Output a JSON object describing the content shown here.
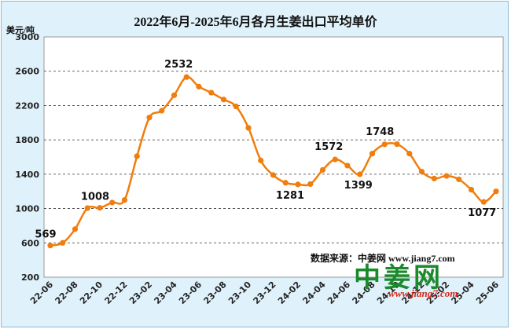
{
  "title": "2022年6月-2025年6月各月生姜出口平均单价",
  "unit_label": "美元/吨",
  "source_text": "数据来源：中姜网 www.jiang7.com",
  "logo": {
    "main": "中姜网",
    "url": "www.jiang7.com"
  },
  "colors": {
    "line": "#f07d0c",
    "plot_bg": "#ffffff",
    "frame_bg": "#dff1fb",
    "grid": "#000000"
  },
  "chart_data": {
    "type": "line",
    "title": "2022年6月-2025年6月各月生姜出口平均单价",
    "xlabel": "",
    "ylabel": "美元/吨",
    "ylim": [
      200,
      3000
    ],
    "yticks": [
      200,
      600,
      1000,
      1400,
      1800,
      2200,
      2600,
      3000
    ],
    "grid": "horizontal dashed",
    "x_tick_labels": [
      "22-06",
      "22-08",
      "22-10",
      "22-12",
      "23-02",
      "23-04",
      "23-06",
      "23-08",
      "23-10",
      "23-12",
      "24-02",
      "24-04",
      "24-06",
      "24-08",
      "24-10",
      "24-12",
      "25-02",
      "25-04",
      "25-06"
    ],
    "x": [
      "22-06",
      "22-07",
      "22-08",
      "22-09",
      "22-10",
      "22-11",
      "22-12",
      "23-01",
      "23-02",
      "23-03",
      "23-04",
      "23-05",
      "23-06",
      "23-07",
      "23-08",
      "23-09",
      "23-10",
      "23-11",
      "23-12",
      "24-01",
      "24-02",
      "24-03",
      "24-04",
      "24-05",
      "24-06",
      "24-07",
      "24-08",
      "24-09",
      "24-10",
      "24-11",
      "24-12",
      "25-01",
      "25-02",
      "25-03",
      "25-04",
      "25-05",
      "25-06"
    ],
    "series": [
      {
        "values": [
          569,
          600,
          760,
          1005,
          1008,
          1070,
          1100,
          1610,
          2060,
          2140,
          2320,
          2532,
          2420,
          2350,
          2270,
          2190,
          1940,
          1560,
          1390,
          1300,
          1281,
          1285,
          1450,
          1572,
          1500,
          1399,
          1640,
          1748,
          1750,
          1640,
          1430,
          1350,
          1380,
          1340,
          1220,
          1077,
          1200
        ]
      }
    ],
    "data_labels": [
      {
        "index": 0,
        "text": "569"
      },
      {
        "index": 4,
        "text": "1008"
      },
      {
        "index": 11,
        "text": "2532"
      },
      {
        "index": 20,
        "text": "1281"
      },
      {
        "index": 23,
        "text": "1572"
      },
      {
        "index": 25,
        "text": "1399"
      },
      {
        "index": 27,
        "text": "1748"
      },
      {
        "index": 35,
        "text": "1077"
      }
    ]
  }
}
